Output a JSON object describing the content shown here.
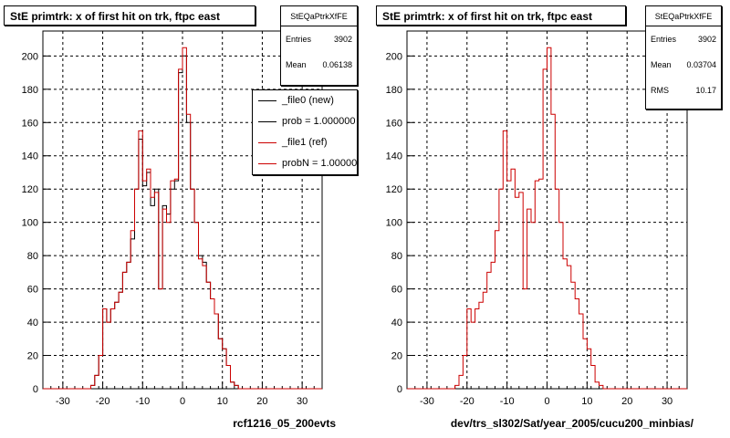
{
  "charts": [
    {
      "title": "StE primtrk: x of first hit on trk, ftpc east",
      "stats": {
        "name": "StEQaPtrkXfFE",
        "rows": [
          {
            "label": "Entries",
            "value": "3902"
          },
          {
            "label": "Mean",
            "value": "0.06138"
          }
        ]
      },
      "legend": [
        {
          "label": "_file0 (new)",
          "color": "#000000"
        },
        {
          "label": "prob = 1.000000",
          "color": "#000000"
        },
        {
          "label": "_file1 (ref)",
          "color": "#cc0000"
        },
        {
          "label": "probN = 1.000000",
          "color": "#cc0000"
        }
      ],
      "xlabel": "rcf1216_05_200evts"
    },
    {
      "title": "StE primtrk: x of first hit on trk, ftpc east",
      "stats": {
        "name": "StEQaPtrkXfFE",
        "rows": [
          {
            "label": "Entries",
            "value": "3902"
          },
          {
            "label": "Mean",
            "value": "0.03704"
          },
          {
            "label": "RMS",
            "value": "10.17"
          }
        ]
      },
      "xlabel": "dev/trs_sl302/Sat/year_2005/cucu200_minbias/"
    }
  ],
  "chart_data": [
    {
      "type": "line",
      "title": "StE primtrk: x of first hit on trk, ftpc east",
      "xlabel": "rcf1216_05_200evts",
      "ylabel": "",
      "xlim": [
        -35,
        35
      ],
      "ylim": [
        0,
        215
      ],
      "grid": true,
      "legend_position": "top-right",
      "x_ticks": [
        -30,
        -20,
        -10,
        0,
        10,
        20,
        30
      ],
      "y_ticks": [
        0,
        20,
        40,
        60,
        80,
        100,
        120,
        140,
        160,
        180,
        200
      ],
      "bin_start": -35,
      "bin_width": 1,
      "series": [
        {
          "name": "_file0 (new)",
          "color": "#000000",
          "values": [
            0,
            0,
            0,
            0,
            0,
            0,
            0,
            0,
            0,
            0,
            0,
            0,
            2,
            8,
            20,
            48,
            40,
            48,
            52,
            58,
            70,
            76,
            90,
            120,
            150,
            122,
            130,
            110,
            120,
            60,
            110,
            105,
            120,
            125,
            190,
            200,
            160,
            120,
            100,
            80,
            76,
            64,
            54,
            45,
            30,
            24,
            14,
            4,
            2,
            0,
            0,
            0,
            0,
            0,
            0,
            0,
            0,
            0,
            0,
            0,
            0,
            0,
            0,
            0,
            0,
            0,
            0,
            0,
            0,
            0
          ]
        },
        {
          "name": "_file1 (ref)",
          "color": "#cc0000",
          "values": [
            0,
            0,
            0,
            0,
            0,
            0,
            0,
            0,
            0,
            0,
            0,
            0,
            2,
            8,
            20,
            48,
            40,
            48,
            52,
            58,
            70,
            76,
            95,
            120,
            155,
            125,
            132,
            115,
            118,
            60,
            108,
            100,
            125,
            126,
            192,
            205,
            165,
            120,
            100,
            78,
            74,
            64,
            54,
            45,
            30,
            24,
            14,
            4,
            2,
            0,
            0,
            0,
            0,
            0,
            0,
            0,
            0,
            0,
            0,
            0,
            0,
            0,
            0,
            0,
            0,
            0,
            0,
            0,
            0,
            0
          ]
        }
      ]
    },
    {
      "type": "line",
      "title": "StE primtrk: x of first hit on trk, ftpc east",
      "xlabel": "dev/trs_sl302/Sat/year_2005/cucu200_minbias/",
      "ylabel": "",
      "xlim": [
        -35,
        35
      ],
      "ylim": [
        0,
        215
      ],
      "grid": true,
      "x_ticks": [
        -30,
        -20,
        -10,
        0,
        10,
        20,
        30
      ],
      "y_ticks": [
        0,
        20,
        40,
        60,
        80,
        100,
        120,
        140,
        160,
        180,
        200
      ],
      "bin_start": -35,
      "bin_width": 1,
      "series": [
        {
          "name": "_file1 (ref)",
          "color": "#cc0000",
          "values": [
            0,
            0,
            0,
            0,
            0,
            0,
            0,
            0,
            0,
            0,
            0,
            0,
            2,
            8,
            20,
            48,
            40,
            48,
            52,
            58,
            70,
            76,
            95,
            120,
            155,
            125,
            132,
            115,
            118,
            60,
            108,
            100,
            125,
            126,
            192,
            205,
            165,
            120,
            100,
            78,
            74,
            64,
            54,
            45,
            30,
            24,
            14,
            4,
            2,
            0,
            0,
            0,
            0,
            0,
            0,
            0,
            0,
            0,
            0,
            0,
            0,
            0,
            0,
            0,
            0,
            0,
            0,
            0,
            0,
            0
          ]
        }
      ]
    }
  ]
}
